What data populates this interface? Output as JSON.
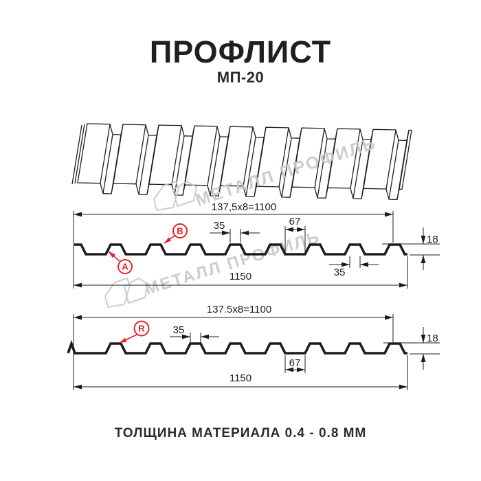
{
  "page": {
    "title": "ПРОФЛИСТ",
    "subtitle": "МП-20",
    "caption": "ТОЛЩИНА МАТЕРИАЛА 0.4 - 0.8 ММ"
  },
  "watermark": {
    "text": "МЕТАЛЛ ПРОФИЛЬ"
  },
  "profile_top": {
    "dim_width_formula": "137,5x8=1100",
    "dim_rib_top": "35",
    "dim_flat": "67",
    "dim_height": "18",
    "dim_rib_bottom": "35",
    "dim_total_width": "1150",
    "label_a": "A",
    "label_b": "B"
  },
  "profile_bottom": {
    "dim_width_formula": "137.5x8=1100",
    "dim_rib_top": "35",
    "dim_flat": "67",
    "dim_height": "18",
    "dim_total_width": "1150",
    "label_r": "R"
  },
  "colors": {
    "accent": "#ec1c24",
    "line": "#1c1c1c",
    "watermark": "#c8c8c8"
  }
}
